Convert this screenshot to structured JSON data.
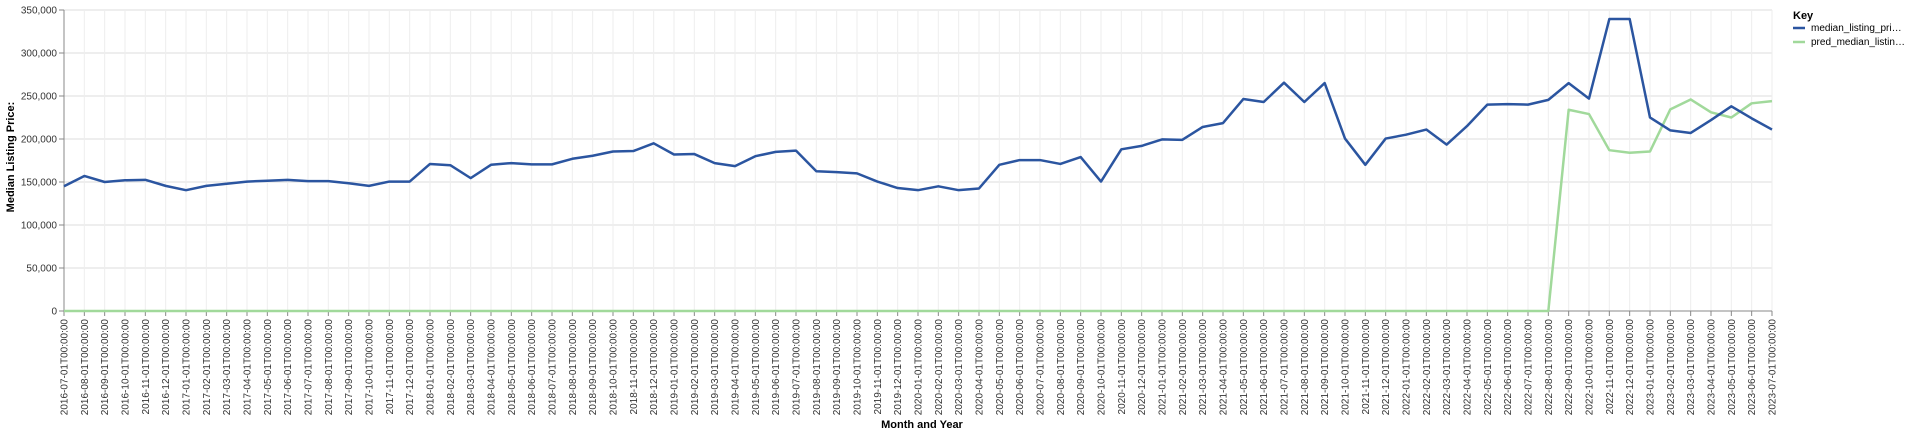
{
  "chart_data": {
    "type": "line",
    "xlabel": "Month and Year",
    "ylabel": "Median Listing Price:",
    "ylim": [
      0,
      350000
    ],
    "y_ticks": [
      "0",
      "50,000",
      "100,000",
      "150,000",
      "200,000",
      "250,000",
      "300,000",
      "350,000"
    ],
    "y_tick_values": [
      0,
      50000,
      100000,
      150000,
      200000,
      250000,
      300000,
      350000
    ],
    "grid": true,
    "legend": {
      "title": "Key",
      "placement": "right"
    },
    "x": [
      "2016-07-01T00:00:00",
      "2016-08-01T00:00:00",
      "2016-09-01T00:00:00",
      "2016-10-01T00:00:00",
      "2016-11-01T00:00:00",
      "2016-12-01T00:00:00",
      "2017-01-01T00:00:00",
      "2017-02-01T00:00:00",
      "2017-03-01T00:00:00",
      "2017-04-01T00:00:00",
      "2017-05-01T00:00:00",
      "2017-06-01T00:00:00",
      "2017-07-01T00:00:00",
      "2017-08-01T00:00:00",
      "2017-09-01T00:00:00",
      "2017-10-01T00:00:00",
      "2017-11-01T00:00:00",
      "2017-12-01T00:00:00",
      "2018-01-01T00:00:00",
      "2018-02-01T00:00:00",
      "2018-03-01T00:00:00",
      "2018-04-01T00:00:00",
      "2018-05-01T00:00:00",
      "2018-06-01T00:00:00",
      "2018-07-01T00:00:00",
      "2018-08-01T00:00:00",
      "2018-09-01T00:00:00",
      "2018-10-01T00:00:00",
      "2018-11-01T00:00:00",
      "2018-12-01T00:00:00",
      "2019-01-01T00:00:00",
      "2019-02-01T00:00:00",
      "2019-03-01T00:00:00",
      "2019-04-01T00:00:00",
      "2019-05-01T00:00:00",
      "2019-06-01T00:00:00",
      "2019-07-01T00:00:00",
      "2019-08-01T00:00:00",
      "2019-09-01T00:00:00",
      "2019-10-01T00:00:00",
      "2019-11-01T00:00:00",
      "2019-12-01T00:00:00",
      "2020-01-01T00:00:00",
      "2020-02-01T00:00:00",
      "2020-03-01T00:00:00",
      "2020-04-01T00:00:00",
      "2020-05-01T00:00:00",
      "2020-06-01T00:00:00",
      "2020-07-01T00:00:00",
      "2020-08-01T00:00:00",
      "2020-09-01T00:00:00",
      "2020-10-01T00:00:00",
      "2020-11-01T00:00:00",
      "2020-12-01T00:00:00",
      "2021-01-01T00:00:00",
      "2021-02-01T00:00:00",
      "2021-03-01T00:00:00",
      "2021-04-01T00:00:00",
      "2021-05-01T00:00:00",
      "2021-06-01T00:00:00",
      "2021-07-01T00:00:00",
      "2021-08-01T00:00:00",
      "2021-09-01T00:00:00",
      "2021-10-01T00:00:00",
      "2021-11-01T00:00:00",
      "2021-12-01T00:00:00",
      "2022-01-01T00:00:00",
      "2022-02-01T00:00:00",
      "2022-03-01T00:00:00",
      "2022-04-01T00:00:00",
      "2022-05-01T00:00:00",
      "2022-06-01T00:00:00",
      "2022-07-01T00:00:00",
      "2022-08-01T00:00:00",
      "2022-09-01T00:00:00",
      "2022-10-01T00:00:00",
      "2022-11-01T00:00:00",
      "2022-12-01T00:00:00",
      "2023-01-01T00:00:00",
      "2023-02-01T00:00:00",
      "2023-03-01T00:00:00",
      "2023-04-01T00:00:00",
      "2023-05-01T00:00:00",
      "2023-06-01T00:00:00",
      "2023-07-01T00:00:00"
    ],
    "series": [
      {
        "name": "median_listing_pri…",
        "color": "#2b55a0",
        "values": [
          145000,
          157000,
          150000,
          152000,
          152500,
          145500,
          140500,
          145500,
          148000,
          150500,
          151500,
          152500,
          151000,
          151000,
          148500,
          145500,
          150500,
          150500,
          171000,
          169500,
          154500,
          170000,
          172000,
          170500,
          170500,
          177000,
          180500,
          185500,
          186000,
          195000,
          182000,
          182500,
          172000,
          168500,
          180000,
          185000,
          186500,
          162500,
          161500,
          160000,
          150500,
          143000,
          140500,
          145000,
          140500,
          142500,
          170000,
          175500,
          175500,
          171000,
          179000,
          150500,
          188000,
          192000,
          199500,
          199000,
          214000,
          218500,
          246500,
          243000,
          265500,
          243000,
          265000,
          200500,
          170000,
          200500,
          205000,
          211000,
          193500,
          215000,
          240000,
          240500,
          240000,
          245500,
          265000,
          247000,
          339500,
          339500,
          225000,
          210000,
          207000,
          222000,
          238000,
          224000,
          211000
        ]
      },
      {
        "name": "pred_median_listin…",
        "color": "#a1d99b",
        "values": [
          0,
          0,
          0,
          0,
          0,
          0,
          0,
          0,
          0,
          0,
          0,
          0,
          0,
          0,
          0,
          0,
          0,
          0,
          0,
          0,
          0,
          0,
          0,
          0,
          0,
          0,
          0,
          0,
          0,
          0,
          0,
          0,
          0,
          0,
          0,
          0,
          0,
          0,
          0,
          0,
          0,
          0,
          0,
          0,
          0,
          0,
          0,
          0,
          0,
          0,
          0,
          0,
          0,
          0,
          0,
          0,
          0,
          0,
          0,
          0,
          0,
          0,
          0,
          0,
          0,
          0,
          0,
          0,
          0,
          0,
          0,
          0,
          0,
          0,
          234000,
          229000,
          187000,
          184000,
          185500,
          234500,
          246000,
          231000,
          225000,
          241500,
          244000
        ]
      }
    ]
  }
}
